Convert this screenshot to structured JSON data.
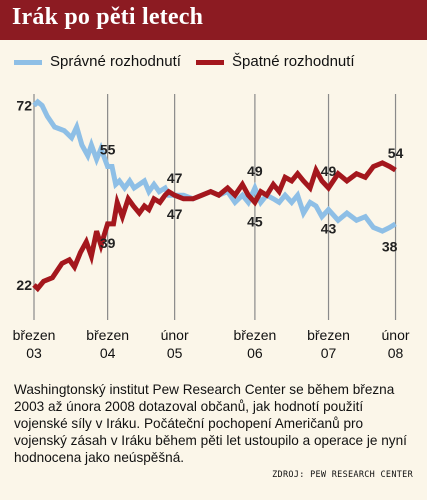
{
  "title": "Irák po pěti letech",
  "caption": "Washingtonský institut Pew Research Center se během března 2003 až února 2008 dotazoval občanů, jak hodnotí použití vojenské síly v Iráku. Počáteční pochopení Američanů pro vojenský zásah v Iráku během pěti let ustoupilo a operace je nyní hodnocena jako neúspěšná.",
  "source": "ZDROJ: PEW RESEARCH CENTER",
  "colors": {
    "header": "#8c1b22",
    "correct": "#8ebfe6",
    "wrong": "#a4171d",
    "background": "#fbf6e9"
  },
  "chart_data": {
    "type": "line",
    "ylim": [
      15,
      78
    ],
    "xlim": [
      2003.17,
      2008.1
    ],
    "x_ticks": [
      {
        "x": 2003.17,
        "line1": "březen",
        "line2": "03"
      },
      {
        "x": 2004.17,
        "line1": "březen",
        "line2": "04"
      },
      {
        "x": 2005.08,
        "line1": "únor",
        "line2": "05"
      },
      {
        "x": 2006.17,
        "line1": "březen",
        "line2": "06"
      },
      {
        "x": 2007.17,
        "line1": "březen",
        "line2": "07"
      },
      {
        "x": 2008.08,
        "line1": "únor",
        "line2": "08"
      }
    ],
    "series": [
      {
        "name": "Správné rozhodnutí",
        "color": "#8ebfe6",
        "points": [
          [
            2003.17,
            72
          ],
          [
            2003.22,
            73
          ],
          [
            2003.28,
            72
          ],
          [
            2003.35,
            69
          ],
          [
            2003.45,
            66
          ],
          [
            2003.58,
            65
          ],
          [
            2003.68,
            63
          ],
          [
            2003.75,
            66
          ],
          [
            2003.82,
            61
          ],
          [
            2003.9,
            58
          ],
          [
            2003.95,
            61
          ],
          [
            2004.02,
            57
          ],
          [
            2004.08,
            60
          ],
          [
            2004.17,
            55
          ],
          [
            2004.23,
            55
          ],
          [
            2004.28,
            50
          ],
          [
            2004.33,
            51
          ],
          [
            2004.4,
            49
          ],
          [
            2004.47,
            51
          ],
          [
            2004.53,
            49
          ],
          [
            2004.6,
            50
          ],
          [
            2004.67,
            51
          ],
          [
            2004.73,
            48
          ],
          [
            2004.8,
            50
          ],
          [
            2004.87,
            48
          ],
          [
            2004.95,
            49
          ],
          [
            2005.0,
            47
          ],
          [
            2005.08,
            47
          ],
          [
            2005.2,
            47
          ],
          [
            2005.33,
            46
          ],
          [
            2005.45,
            47
          ],
          [
            2005.57,
            48
          ],
          [
            2005.68,
            47
          ],
          [
            2005.8,
            48
          ],
          [
            2005.9,
            45
          ],
          [
            2006.0,
            47
          ],
          [
            2006.08,
            45
          ],
          [
            2006.17,
            49
          ],
          [
            2006.25,
            45
          ],
          [
            2006.33,
            47
          ],
          [
            2006.42,
            46
          ],
          [
            2006.5,
            45
          ],
          [
            2006.58,
            47
          ],
          [
            2006.67,
            45
          ],
          [
            2006.75,
            47
          ],
          [
            2006.83,
            42
          ],
          [
            2006.92,
            45
          ],
          [
            2007.0,
            44
          ],
          [
            2007.08,
            41
          ],
          [
            2007.17,
            43
          ],
          [
            2007.3,
            40
          ],
          [
            2007.42,
            42
          ],
          [
            2007.55,
            40
          ],
          [
            2007.67,
            41
          ],
          [
            2007.78,
            38
          ],
          [
            2007.9,
            37
          ],
          [
            2008.0,
            38
          ],
          [
            2008.08,
            39
          ]
        ]
      },
      {
        "name": "Špatné rozhodnutí",
        "color": "#a4171d",
        "points": [
          [
            2003.17,
            22
          ],
          [
            2003.22,
            21
          ],
          [
            2003.3,
            23
          ],
          [
            2003.42,
            24
          ],
          [
            2003.55,
            28
          ],
          [
            2003.65,
            29
          ],
          [
            2003.72,
            27
          ],
          [
            2003.8,
            31
          ],
          [
            2003.88,
            34
          ],
          [
            2003.95,
            30
          ],
          [
            2004.02,
            37
          ],
          [
            2004.08,
            33
          ],
          [
            2004.17,
            39
          ],
          [
            2004.25,
            39
          ],
          [
            2004.3,
            45
          ],
          [
            2004.37,
            41
          ],
          [
            2004.45,
            46
          ],
          [
            2004.52,
            44
          ],
          [
            2004.6,
            42
          ],
          [
            2004.67,
            44
          ],
          [
            2004.73,
            43
          ],
          [
            2004.8,
            46
          ],
          [
            2004.88,
            45
          ],
          [
            2004.95,
            47
          ],
          [
            2005.0,
            48
          ],
          [
            2005.08,
            47
          ],
          [
            2005.2,
            46
          ],
          [
            2005.33,
            46
          ],
          [
            2005.45,
            47
          ],
          [
            2005.57,
            48
          ],
          [
            2005.68,
            47
          ],
          [
            2005.8,
            49
          ],
          [
            2005.9,
            47
          ],
          [
            2006.0,
            50
          ],
          [
            2006.08,
            47
          ],
          [
            2006.17,
            45
          ],
          [
            2006.25,
            48
          ],
          [
            2006.33,
            47
          ],
          [
            2006.42,
            50
          ],
          [
            2006.5,
            48
          ],
          [
            2006.58,
            52
          ],
          [
            2006.67,
            51
          ],
          [
            2006.75,
            53
          ],
          [
            2006.83,
            51
          ],
          [
            2006.92,
            49
          ],
          [
            2007.0,
            54
          ],
          [
            2007.08,
            51
          ],
          [
            2007.17,
            49
          ],
          [
            2007.3,
            53
          ],
          [
            2007.42,
            51
          ],
          [
            2007.55,
            53
          ],
          [
            2007.67,
            52
          ],
          [
            2007.78,
            55
          ],
          [
            2007.9,
            56
          ],
          [
            2008.0,
            55
          ],
          [
            2008.08,
            54
          ]
        ]
      }
    ],
    "data_labels": [
      {
        "text": "72",
        "x": 2003.17,
        "y": 72,
        "series": 0,
        "pos": "left"
      },
      {
        "text": "22",
        "x": 2003.17,
        "y": 22,
        "series": 1,
        "pos": "left"
      },
      {
        "text": "55",
        "x": 2004.17,
        "y": 55,
        "series": 0,
        "pos": "above"
      },
      {
        "text": "39",
        "x": 2004.17,
        "y": 39,
        "series": 1,
        "pos": "below"
      },
      {
        "text": "47",
        "x": 2005.08,
        "y": 47,
        "series": 0,
        "pos": "above"
      },
      {
        "text": "47",
        "x": 2005.08,
        "y": 47,
        "series": 1,
        "pos": "below"
      },
      {
        "text": "49",
        "x": 2006.17,
        "y": 49,
        "series": 0,
        "pos": "above"
      },
      {
        "text": "45",
        "x": 2006.17,
        "y": 45,
        "series": 1,
        "pos": "below"
      },
      {
        "text": "49",
        "x": 2007.17,
        "y": 49,
        "series": 1,
        "pos": "above"
      },
      {
        "text": "43",
        "x": 2007.17,
        "y": 43,
        "series": 0,
        "pos": "below"
      },
      {
        "text": "54",
        "x": 2008.08,
        "y": 54,
        "series": 1,
        "pos": "above"
      },
      {
        "text": "38",
        "x": 2008.0,
        "y": 38,
        "series": 0,
        "pos": "below"
      }
    ]
  }
}
